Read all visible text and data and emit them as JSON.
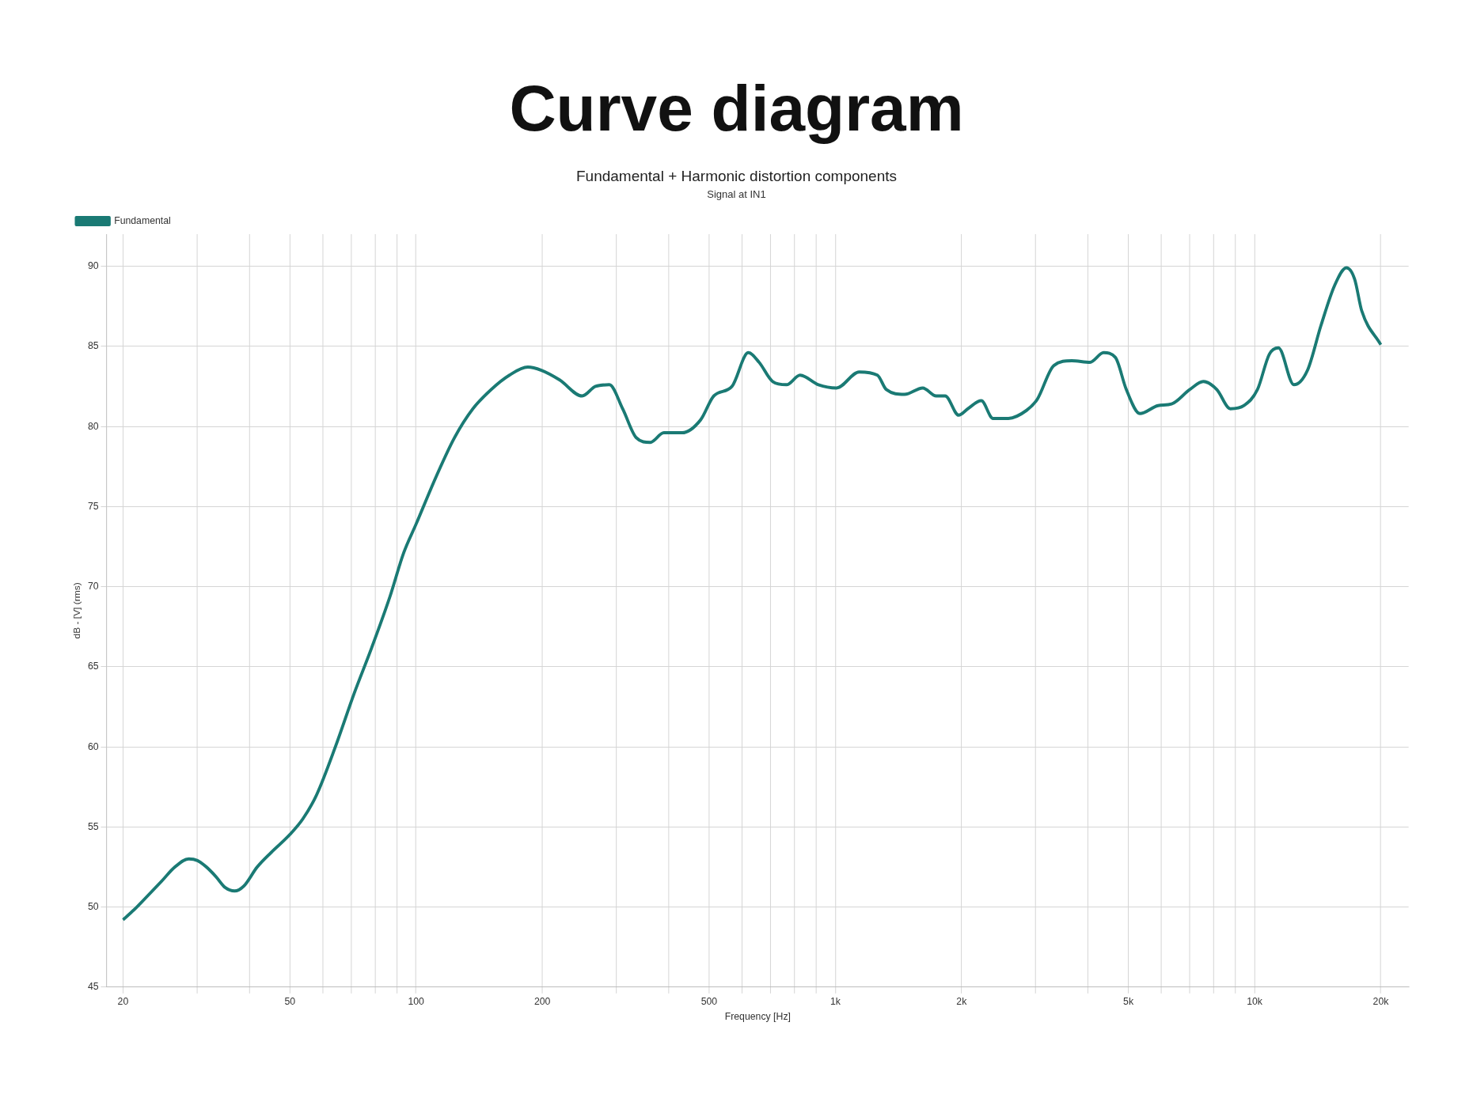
{
  "chart_data": {
    "type": "line",
    "title": "Curve diagram",
    "subtitle": "Fundamental + Harmonic distortion components",
    "annotations": [
      "Signal at IN1"
    ],
    "xlabel": "Frequency [Hz]",
    "ylabel": "dB - [V] (rms)",
    "log": "x",
    "grid": true,
    "legend": "top left",
    "x": [
      20,
      21.2,
      22.9,
      24.7,
      26.6,
      28.7,
      30.1,
      31.6,
      33.3,
      35.1,
      36.9,
      38.8,
      41.8,
      45.1,
      49.9,
      53.7,
      57.9,
      64.2,
      71.1,
      78.4,
      86.7,
      93.4,
      100,
      111.8,
      123.5,
      136.6,
      151,
      167,
      184.7,
      199,
      220,
      249,
      268,
      289,
      311,
      335,
      362,
      390,
      431,
      477,
      513,
      567,
      620,
      658,
      709,
      765,
      824,
      911,
      1007,
      1140,
      1260,
      1323,
      1462,
      1616,
      1740,
      1828,
      1969,
      2070,
      2229,
      2377,
      2587,
      2858,
      3033,
      3320,
      3665,
      4050,
      4364,
      4657,
      4944,
      5326,
      5885,
      6339,
      7005,
      7546,
      8128,
      8757,
      9433,
      10160,
      10840,
      11400,
      12410,
      13370,
      14400,
      15520,
      16560,
      17320,
      18020,
      20000
    ],
    "series": [
      {
        "name": "Fundamental",
        "color": "#1a7a74",
        "values": [
          49.2,
          49.8,
          50.7,
          51.6,
          52.5,
          53.0,
          52.9,
          52.5,
          51.9,
          51.2,
          51.0,
          51.3,
          52.5,
          53.4,
          54.5,
          55.5,
          57.0,
          60.0,
          63.3,
          66.2,
          69.4,
          72.1,
          73.9,
          76.9,
          79.3,
          81.1,
          82.3,
          83.2,
          83.7,
          83.5,
          82.9,
          81.9,
          82.5,
          82.6,
          81.1,
          79.3,
          79.0,
          79.6,
          79.6,
          80.4,
          81.9,
          82.5,
          84.6,
          84.0,
          82.8,
          82.6,
          83.2,
          82.6,
          82.4,
          83.4,
          83.2,
          82.3,
          82.0,
          82.4,
          81.9,
          81.9,
          80.7,
          81.1,
          81.6,
          80.5,
          80.5,
          81.0,
          81.7,
          83.8,
          84.1,
          84.0,
          84.6,
          84.3,
          82.3,
          80.8,
          81.3,
          81.4,
          82.3,
          82.8,
          82.3,
          81.1,
          81.3,
          82.3,
          84.5,
          84.9,
          82.6,
          83.5,
          86.3,
          88.8,
          89.9,
          89.2,
          87.2,
          85.1
        ]
      }
    ],
    "xlim": [
      18.3,
      23300
    ],
    "ylim": [
      45,
      92
    ],
    "xticks": [
      20,
      {
        "value": 30,
        "label": null
      },
      {
        "value": 40,
        "label": null
      },
      50,
      {
        "value": 60,
        "label": null
      },
      {
        "value": 70,
        "label": null
      },
      {
        "value": 80,
        "label": null
      },
      {
        "value": 90,
        "label": null
      },
      100,
      200,
      {
        "value": 300,
        "label": null
      },
      {
        "value": 400,
        "label": null
      },
      500,
      {
        "value": 600,
        "label": null
      },
      {
        "value": 700,
        "label": null
      },
      {
        "value": 800,
        "label": null
      },
      {
        "value": 900,
        "label": null
      },
      {
        "value": 1000,
        "label": "1k"
      },
      {
        "value": 2000,
        "label": "2k"
      },
      {
        "value": 3000,
        "label": null
      },
      {
        "value": 4000,
        "label": null
      },
      {
        "value": 5000,
        "label": "5k"
      },
      {
        "value": 6000,
        "label": null
      },
      {
        "value": 7000,
        "label": null
      },
      {
        "value": 8000,
        "label": null
      },
      {
        "value": 9000,
        "label": null
      },
      {
        "value": 10000,
        "label": "10k"
      },
      {
        "value": 20000,
        "label": "20k"
      }
    ],
    "yticks": [
      45,
      50,
      55,
      60,
      65,
      70,
      75,
      80,
      85,
      90
    ]
  }
}
